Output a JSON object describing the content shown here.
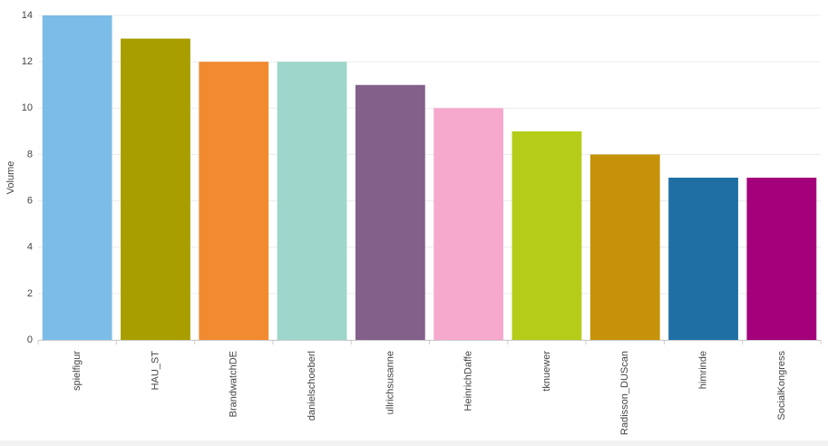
{
  "chart_data": {
    "type": "bar",
    "y_label": "Volume",
    "categories": [
      "spielfigur",
      "HAU_ST",
      "BrandwatchDE",
      "danielschoeberl",
      "ullrichsusanne",
      "HeinrichDaffe",
      "tknuewer",
      "Radisson_DUScan",
      "himrinde",
      "SocialKongress"
    ],
    "values": [
      14,
      13,
      12,
      12,
      11,
      10,
      9,
      8,
      7,
      7
    ],
    "colors": [
      "#7bbde8",
      "#a99e00",
      "#f28a30",
      "#9dd6cb",
      "#82608a",
      "#f6a8cd",
      "#b5cc18",
      "#c5920a",
      "#1f6fa5",
      "#a4007b"
    ],
    "ylim": [
      0,
      14
    ],
    "yticks": [
      0,
      2,
      4,
      6,
      8,
      10,
      12,
      14
    ],
    "grid": true
  }
}
